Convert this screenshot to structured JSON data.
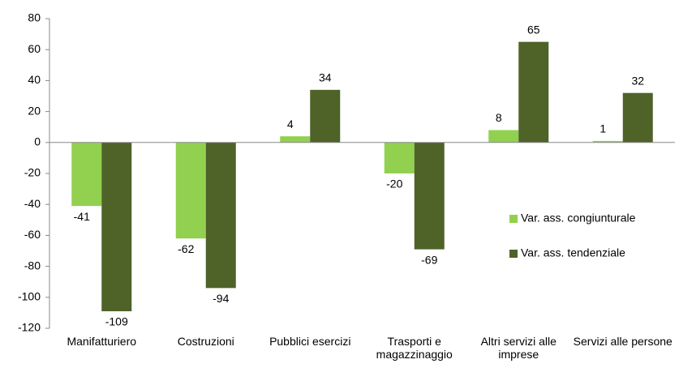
{
  "chart_data": {
    "type": "bar",
    "categories": [
      "Manifatturiero",
      "Costruzioni",
      "Pubblici esercizi",
      "Trasporti e magazzinaggio",
      "Altri servizi alle imprese",
      "Servizi alle persone"
    ],
    "series": [
      {
        "name": "Var. ass. congiunturale",
        "color": "#92d050",
        "values": [
          -41,
          -62,
          4,
          -20,
          8,
          1
        ]
      },
      {
        "name": "Var. ass. tendenziale",
        "color": "#4f6228",
        "values": [
          -109,
          -94,
          34,
          -69,
          65,
          32
        ]
      }
    ],
    "ylim": [
      -120,
      80
    ],
    "yticks": [
      -120,
      -100,
      -80,
      -60,
      -40,
      -20,
      0,
      20,
      40,
      60,
      80
    ],
    "legend": "right"
  }
}
